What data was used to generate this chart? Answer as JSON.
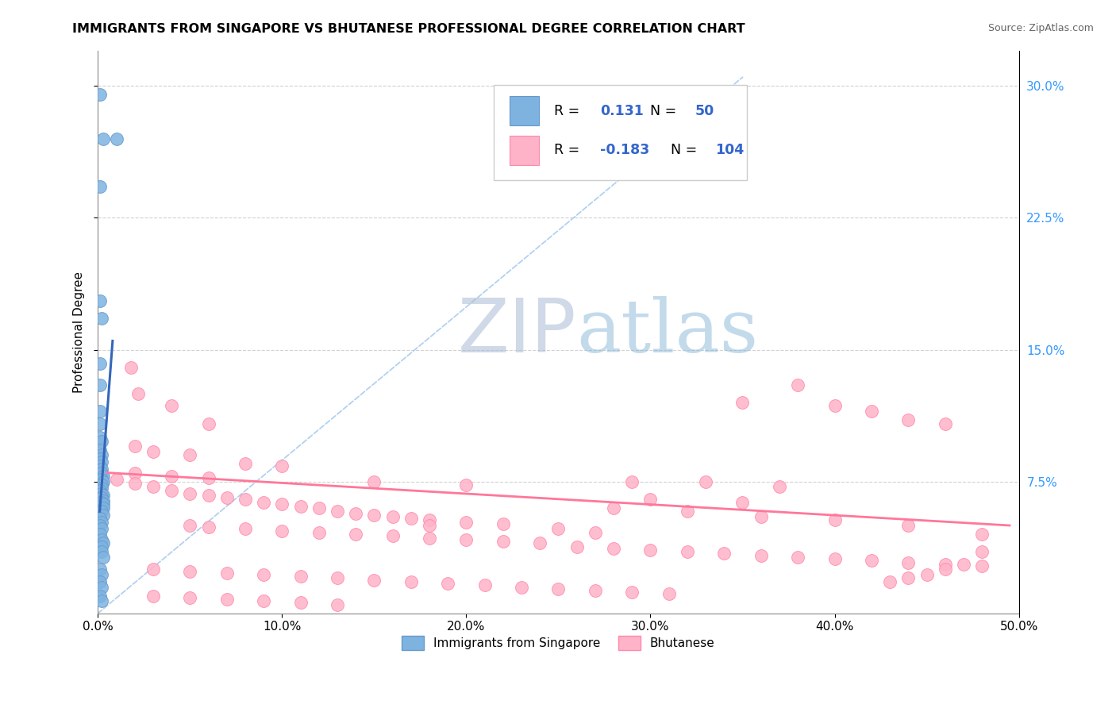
{
  "title": "IMMIGRANTS FROM SINGAPORE VS BHUTANESE PROFESSIONAL DEGREE CORRELATION CHART",
  "source": "Source: ZipAtlas.com",
  "ylabel": "Professional Degree",
  "x_tick_labels": [
    "0.0%",
    "10.0%",
    "20.0%",
    "30.0%",
    "40.0%",
    "50.0%"
  ],
  "x_tick_values": [
    0.0,
    0.1,
    0.2,
    0.3,
    0.4,
    0.5
  ],
  "y_tick_labels_right": [
    "30.0%",
    "22.5%",
    "15.0%",
    "7.5%"
  ],
  "y_tick_values_right": [
    0.3,
    0.225,
    0.15,
    0.075
  ],
  "xlim": [
    0.0,
    0.5
  ],
  "ylim": [
    0.0,
    0.32
  ],
  "blue_dot_color": "#7EB3E0",
  "blue_dot_edge": "#6699CC",
  "pink_dot_color": "#FFB3C8",
  "pink_dot_edge": "#FF88AA",
  "blue_line_color": "#3366BB",
  "pink_line_color": "#FF7799",
  "diag_line_color": "#AACCEE",
  "legend_text_color": "#3366CC",
  "legend_border": "#CCCCCC",
  "right_axis_color": "#3399FF",
  "singapore_scatter": [
    [
      0.001,
      0.295
    ],
    [
      0.001,
      0.243
    ],
    [
      0.003,
      0.27
    ],
    [
      0.01,
      0.27
    ],
    [
      0.001,
      0.178
    ],
    [
      0.002,
      0.168
    ],
    [
      0.001,
      0.142
    ],
    [
      0.001,
      0.13
    ],
    [
      0.001,
      0.115
    ],
    [
      0.001,
      0.108
    ],
    [
      0.001,
      0.1
    ],
    [
      0.002,
      0.098
    ],
    [
      0.001,
      0.093
    ],
    [
      0.002,
      0.09
    ],
    [
      0.001,
      0.088
    ],
    [
      0.002,
      0.086
    ],
    [
      0.001,
      0.084
    ],
    [
      0.002,
      0.082
    ],
    [
      0.002,
      0.08
    ],
    [
      0.003,
      0.078
    ],
    [
      0.002,
      0.076
    ],
    [
      0.003,
      0.075
    ],
    [
      0.002,
      0.073
    ],
    [
      0.002,
      0.071
    ],
    [
      0.001,
      0.07
    ],
    [
      0.002,
      0.068
    ],
    [
      0.003,
      0.067
    ],
    [
      0.002,
      0.066
    ],
    [
      0.003,
      0.064
    ],
    [
      0.002,
      0.063
    ],
    [
      0.003,
      0.062
    ],
    [
      0.003,
      0.06
    ],
    [
      0.002,
      0.058
    ],
    [
      0.003,
      0.056
    ],
    [
      0.001,
      0.054
    ],
    [
      0.002,
      0.052
    ],
    [
      0.001,
      0.05
    ],
    [
      0.002,
      0.048
    ],
    [
      0.001,
      0.045
    ],
    [
      0.002,
      0.042
    ],
    [
      0.003,
      0.04
    ],
    [
      0.002,
      0.038
    ],
    [
      0.002,
      0.035
    ],
    [
      0.003,
      0.032
    ],
    [
      0.001,
      0.025
    ],
    [
      0.002,
      0.022
    ],
    [
      0.001,
      0.018
    ],
    [
      0.002,
      0.015
    ],
    [
      0.001,
      0.01
    ],
    [
      0.002,
      0.007
    ]
  ],
  "bhutanese_scatter": [
    [
      0.018,
      0.14
    ],
    [
      0.022,
      0.125
    ],
    [
      0.04,
      0.118
    ],
    [
      0.06,
      0.108
    ],
    [
      0.02,
      0.095
    ],
    [
      0.03,
      0.092
    ],
    [
      0.05,
      0.09
    ],
    [
      0.08,
      0.085
    ],
    [
      0.1,
      0.084
    ],
    [
      0.02,
      0.08
    ],
    [
      0.04,
      0.078
    ],
    [
      0.06,
      0.077
    ],
    [
      0.01,
      0.076
    ],
    [
      0.02,
      0.074
    ],
    [
      0.03,
      0.072
    ],
    [
      0.04,
      0.07
    ],
    [
      0.05,
      0.068
    ],
    [
      0.06,
      0.067
    ],
    [
      0.07,
      0.066
    ],
    [
      0.08,
      0.065
    ],
    [
      0.09,
      0.063
    ],
    [
      0.1,
      0.062
    ],
    [
      0.11,
      0.061
    ],
    [
      0.12,
      0.06
    ],
    [
      0.13,
      0.058
    ],
    [
      0.14,
      0.057
    ],
    [
      0.15,
      0.056
    ],
    [
      0.16,
      0.055
    ],
    [
      0.17,
      0.054
    ],
    [
      0.18,
      0.053
    ],
    [
      0.05,
      0.05
    ],
    [
      0.06,
      0.049
    ],
    [
      0.08,
      0.048
    ],
    [
      0.1,
      0.047
    ],
    [
      0.12,
      0.046
    ],
    [
      0.14,
      0.045
    ],
    [
      0.16,
      0.044
    ],
    [
      0.18,
      0.043
    ],
    [
      0.2,
      0.042
    ],
    [
      0.22,
      0.041
    ],
    [
      0.24,
      0.04
    ],
    [
      0.26,
      0.038
    ],
    [
      0.28,
      0.037
    ],
    [
      0.3,
      0.036
    ],
    [
      0.32,
      0.035
    ],
    [
      0.34,
      0.034
    ],
    [
      0.36,
      0.033
    ],
    [
      0.38,
      0.032
    ],
    [
      0.4,
      0.031
    ],
    [
      0.42,
      0.03
    ],
    [
      0.44,
      0.029
    ],
    [
      0.46,
      0.028
    ],
    [
      0.48,
      0.027
    ],
    [
      0.03,
      0.025
    ],
    [
      0.05,
      0.024
    ],
    [
      0.07,
      0.023
    ],
    [
      0.09,
      0.022
    ],
    [
      0.11,
      0.021
    ],
    [
      0.13,
      0.02
    ],
    [
      0.15,
      0.019
    ],
    [
      0.17,
      0.018
    ],
    [
      0.19,
      0.017
    ],
    [
      0.21,
      0.016
    ],
    [
      0.23,
      0.015
    ],
    [
      0.25,
      0.014
    ],
    [
      0.27,
      0.013
    ],
    [
      0.29,
      0.012
    ],
    [
      0.31,
      0.011
    ],
    [
      0.35,
      0.12
    ],
    [
      0.38,
      0.13
    ],
    [
      0.4,
      0.118
    ],
    [
      0.42,
      0.115
    ],
    [
      0.44,
      0.11
    ],
    [
      0.46,
      0.108
    ],
    [
      0.29,
      0.075
    ],
    [
      0.33,
      0.075
    ],
    [
      0.37,
      0.072
    ],
    [
      0.3,
      0.065
    ],
    [
      0.35,
      0.063
    ],
    [
      0.28,
      0.06
    ],
    [
      0.32,
      0.058
    ],
    [
      0.36,
      0.055
    ],
    [
      0.4,
      0.053
    ],
    [
      0.44,
      0.05
    ],
    [
      0.48,
      0.045
    ],
    [
      0.03,
      0.01
    ],
    [
      0.05,
      0.009
    ],
    [
      0.07,
      0.008
    ],
    [
      0.09,
      0.007
    ],
    [
      0.11,
      0.006
    ],
    [
      0.13,
      0.005
    ],
    [
      0.48,
      0.035
    ],
    [
      0.47,
      0.028
    ],
    [
      0.46,
      0.025
    ],
    [
      0.45,
      0.022
    ],
    [
      0.44,
      0.02
    ],
    [
      0.43,
      0.018
    ],
    [
      0.2,
      0.052
    ],
    [
      0.22,
      0.051
    ],
    [
      0.18,
      0.05
    ],
    [
      0.25,
      0.048
    ],
    [
      0.27,
      0.046
    ],
    [
      0.15,
      0.075
    ],
    [
      0.2,
      0.073
    ]
  ],
  "sg_trend_x": [
    0.001,
    0.008
  ],
  "sg_trend_y": [
    0.058,
    0.155
  ],
  "bh_trend_x": [
    0.005,
    0.495
  ],
  "bh_trend_y": [
    0.08,
    0.05
  ]
}
